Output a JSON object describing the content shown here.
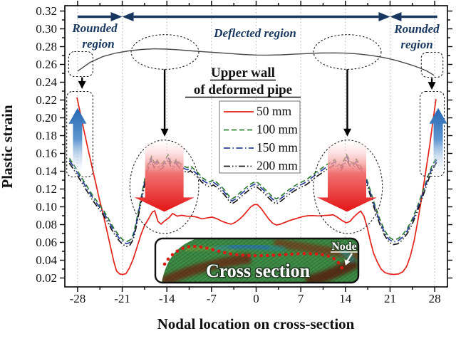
{
  "figure": {
    "x_axis": {
      "title": "Nodal location on cross-section",
      "tick_labels": [
        "-28",
        "-21",
        "-14",
        "-7",
        "0",
        "7",
        "14",
        "21",
        "28"
      ],
      "major_ticks": [
        -28,
        -21,
        -14,
        -7,
        0,
        7,
        14,
        21,
        28
      ],
      "minor_step": 3.5
    },
    "y_axis": {
      "title": "Plastic strain",
      "tick_labels": [
        "0.02",
        "0.04",
        "0.06",
        "0.08",
        "0.10",
        "0.12",
        "0.14",
        "0.16",
        "0.18",
        "0.20",
        "0.22",
        "0.24",
        "0.26",
        "0.28",
        "0.30",
        "0.32"
      ],
      "major_step": 0.02,
      "minor_step": 0.01
    }
  },
  "legend": {
    "entries": [
      {
        "label": "50 mm",
        "color": "#e2231a",
        "style": "solid"
      },
      {
        "label": "100 mm",
        "color": "#2e7d35",
        "style": "dashed"
      },
      {
        "label": "150 mm",
        "color": "#2c3e9e",
        "style": "dashdot"
      },
      {
        "label": "200 mm",
        "color": "#1c1c1c",
        "style": "dashdotdot"
      }
    ]
  },
  "annotations_text": {
    "rounded_region_left": {
      "line1": "Rounded",
      "line2": "region"
    },
    "deflected_region": {
      "label": "Deflected region"
    },
    "rounded_region_right": {
      "line1": "Rounded",
      "line2": "region"
    },
    "upper_wall": {
      "line1": "Upper wall",
      "line2": "of deformed pipe"
    },
    "inset": {
      "caption": "Cross section",
      "node_label": "Node"
    }
  },
  "chart_data": {
    "type": "line",
    "title": "",
    "xlabel": "Nodal location on cross-section",
    "ylabel": "Plastic strain",
    "xlim": [
      -30,
      30
    ],
    "ylim": [
      0.01,
      0.326
    ],
    "grid": "vertical-dotted",
    "legend_position": "upper-middle-left",
    "colors": {
      "series_50mm": "#e2231a",
      "series_100mm": "#2e7d35",
      "series_150mm": "#2c3e9e",
      "series_200mm": "#1c1c1c",
      "wall_profile": "#4a4a4a",
      "navy_annotation": "#17375e",
      "blue_arrow": "#2f6db8",
      "red_arrow": "#e8150d"
    },
    "series": [
      {
        "name": "50 mm",
        "color": "#e2231a",
        "style": "solid",
        "points": [
          [
            -28.1,
            0.223
          ],
          [
            -27.6,
            0.206
          ],
          [
            -27.0,
            0.186
          ],
          [
            -26.4,
            0.166
          ],
          [
            -25.8,
            0.147
          ],
          [
            -25.2,
            0.128
          ],
          [
            -24.6,
            0.109
          ],
          [
            -24.0,
            0.092
          ],
          [
            -23.4,
            0.073
          ],
          [
            -22.8,
            0.054
          ],
          [
            -22.3,
            0.038
          ],
          [
            -21.9,
            0.028
          ],
          [
            -21.4,
            0.0245
          ],
          [
            -20.9,
            0.024
          ],
          [
            -20.4,
            0.025
          ],
          [
            -19.9,
            0.031
          ],
          [
            -19.3,
            0.041
          ],
          [
            -18.7,
            0.054
          ],
          [
            -18.1,
            0.068
          ],
          [
            -17.5,
            0.079
          ],
          [
            -16.9,
            0.086
          ],
          [
            -16.3,
            0.094
          ],
          [
            -15.9,
            0.0955
          ],
          [
            -15.4,
            0.0835
          ],
          [
            -14.9,
            0.0805
          ],
          [
            -14.3,
            0.0845
          ],
          [
            -13.7,
            0.0875
          ],
          [
            -13.1,
            0.0925
          ],
          [
            -12.4,
            0.0895
          ],
          [
            -11.7,
            0.0905
          ],
          [
            -10.9,
            0.0895
          ],
          [
            -10.1,
            0.0893
          ],
          [
            -9.3,
            0.0885
          ],
          [
            -8.5,
            0.0865
          ],
          [
            -7.7,
            0.0875
          ],
          [
            -6.9,
            0.0885
          ],
          [
            -6.1,
            0.0865
          ],
          [
            -5.3,
            0.0835
          ],
          [
            -4.5,
            0.0815
          ],
          [
            -3.9,
            0.0805
          ],
          [
            -3.3,
            0.0825
          ],
          [
            -2.7,
            0.0855
          ],
          [
            -2.1,
            0.0895
          ],
          [
            -1.5,
            0.0945
          ],
          [
            -0.9,
            0.0995
          ],
          [
            -0.3,
            0.1025
          ],
          [
            0.2,
            0.1025
          ],
          [
            0.8,
            0.098
          ],
          [
            1.4,
            0.092
          ],
          [
            2.0,
            0.086
          ],
          [
            2.6,
            0.0815
          ],
          [
            3.2,
            0.0795
          ],
          [
            3.8,
            0.0805
          ],
          [
            4.5,
            0.0825
          ],
          [
            5.2,
            0.0845
          ],
          [
            5.9,
            0.086
          ],
          [
            6.6,
            0.0875
          ],
          [
            7.3,
            0.089
          ],
          [
            8.1,
            0.09
          ],
          [
            8.9,
            0.0902
          ],
          [
            9.7,
            0.0898
          ],
          [
            10.5,
            0.0902
          ],
          [
            11.3,
            0.0905
          ],
          [
            12.1,
            0.091
          ],
          [
            12.8,
            0.088
          ],
          [
            13.5,
            0.0845
          ],
          [
            14.1,
            0.082
          ],
          [
            14.7,
            0.0835
          ],
          [
            15.3,
            0.0885
          ],
          [
            15.9,
            0.0925
          ],
          [
            16.4,
            0.0952
          ],
          [
            16.9,
            0.0895
          ],
          [
            17.4,
            0.0775
          ],
          [
            17.9,
            0.062
          ],
          [
            18.4,
            0.048
          ],
          [
            19.0,
            0.038
          ],
          [
            19.6,
            0.03
          ],
          [
            20.2,
            0.026
          ],
          [
            20.9,
            0.0245
          ],
          [
            21.6,
            0.024
          ],
          [
            22.3,
            0.0245
          ],
          [
            23.0,
            0.027
          ],
          [
            23.6,
            0.033
          ],
          [
            24.2,
            0.045
          ],
          [
            24.8,
            0.063
          ],
          [
            25.4,
            0.086
          ],
          [
            26.0,
            0.112
          ],
          [
            26.6,
            0.14
          ],
          [
            27.2,
            0.168
          ],
          [
            27.7,
            0.195
          ],
          [
            28.2,
            0.221
          ]
        ]
      },
      {
        "name": "100 mm",
        "color": "#2e7d35",
        "style": "dashed",
        "base": "deflected_base",
        "offset": 0.0025
      },
      {
        "name": "150 mm",
        "color": "#2c3e9e",
        "style": "dashdot",
        "base": "deflected_base",
        "offset": 0.0
      },
      {
        "name": "200 mm",
        "color": "#1c1c1c",
        "style": "dashdotdot",
        "base": "deflected_base",
        "offset": -0.003
      }
    ],
    "deflected_base": [
      [
        -29.3,
        0.152
      ],
      [
        -28.7,
        0.146
      ],
      [
        -28.1,
        0.139
      ],
      [
        -27.5,
        0.132
      ],
      [
        -26.9,
        0.125
      ],
      [
        -26.3,
        0.118
      ],
      [
        -25.7,
        0.111
      ],
      [
        -25.1,
        0.105
      ],
      [
        -24.5,
        0.099
      ],
      [
        -23.9,
        0.093
      ],
      [
        -23.3,
        0.086
      ],
      [
        -22.7,
        0.078
      ],
      [
        -22.1,
        0.071
      ],
      [
        -21.5,
        0.065
      ],
      [
        -20.9,
        0.0605
      ],
      [
        -20.3,
        0.0585
      ],
      [
        -19.8,
        0.06
      ],
      [
        -19.3,
        0.066
      ],
      [
        -18.9,
        0.077
      ],
      [
        -18.4,
        0.095
      ],
      [
        -17.9,
        0.113
      ],
      [
        -17.4,
        0.131
      ],
      [
        -16.9,
        0.146
      ],
      [
        -16.4,
        0.154
      ],
      [
        -16.0,
        0.147
      ],
      [
        -15.6,
        0.151
      ],
      [
        -15.1,
        0.1445
      ],
      [
        -14.6,
        0.147
      ],
      [
        -14.1,
        0.1525
      ],
      [
        -13.8,
        0.156
      ],
      [
        -13.4,
        0.1485
      ],
      [
        -13.0,
        0.1455
      ],
      [
        -12.5,
        0.151
      ],
      [
        -12.0,
        0.1465
      ],
      [
        -11.4,
        0.1435
      ],
      [
        -10.8,
        0.1415
      ],
      [
        -10.3,
        0.1435
      ],
      [
        -9.7,
        0.1395
      ],
      [
        -9.1,
        0.1355
      ],
      [
        -8.5,
        0.1305
      ],
      [
        -7.9,
        0.1275
      ],
      [
        -7.3,
        0.1255
      ],
      [
        -6.7,
        0.1275
      ],
      [
        -6.1,
        0.1245
      ],
      [
        -5.5,
        0.1205
      ],
      [
        -4.9,
        0.116
      ],
      [
        -4.3,
        0.11
      ],
      [
        -3.8,
        0.1065
      ],
      [
        -3.3,
        0.1085
      ],
      [
        -2.8,
        0.1115
      ],
      [
        -2.2,
        0.1155
      ],
      [
        -1.6,
        0.119
      ],
      [
        -1.0,
        0.1225
      ],
      [
        -0.5,
        0.1245
      ],
      [
        0.0,
        0.126
      ],
      [
        0.6,
        0.1225
      ],
      [
        1.2,
        0.1185
      ],
      [
        1.9,
        0.1135
      ],
      [
        2.6,
        0.1085
      ],
      [
        3.2,
        0.1065
      ],
      [
        3.8,
        0.109
      ],
      [
        4.5,
        0.113
      ],
      [
        5.2,
        0.117
      ],
      [
        5.9,
        0.1205
      ],
      [
        6.6,
        0.1235
      ],
      [
        7.2,
        0.1255
      ],
      [
        7.9,
        0.128
      ],
      [
        8.6,
        0.132
      ],
      [
        9.4,
        0.1365
      ],
      [
        10.2,
        0.1405
      ],
      [
        11.0,
        0.1445
      ],
      [
        11.7,
        0.1475
      ],
      [
        12.3,
        0.1505
      ],
      [
        12.8,
        0.146
      ],
      [
        13.3,
        0.1435
      ],
      [
        13.8,
        0.1505
      ],
      [
        14.2,
        0.156
      ],
      [
        14.7,
        0.149
      ],
      [
        15.2,
        0.146
      ],
      [
        15.7,
        0.151
      ],
      [
        16.2,
        0.1455
      ],
      [
        16.8,
        0.1375
      ],
      [
        17.4,
        0.1275
      ],
      [
        18.0,
        0.1135
      ],
      [
        18.7,
        0.0975
      ],
      [
        19.4,
        0.0835
      ],
      [
        20.1,
        0.0715
      ],
      [
        20.8,
        0.0635
      ],
      [
        21.5,
        0.0605
      ],
      [
        22.2,
        0.0615
      ],
      [
        22.9,
        0.0655
      ],
      [
        23.7,
        0.073
      ],
      [
        24.5,
        0.084
      ],
      [
        25.3,
        0.098
      ],
      [
        26.1,
        0.114
      ],
      [
        26.9,
        0.131
      ],
      [
        27.6,
        0.144
      ],
      [
        28.3,
        0.153
      ]
    ],
    "wall_profile": [
      [
        -28.0,
        0.2525
      ],
      [
        -26,
        0.2625
      ],
      [
        -24,
        0.269
      ],
      [
        -22,
        0.2728
      ],
      [
        -20,
        0.2752
      ],
      [
        -18,
        0.2768
      ],
      [
        -16,
        0.2775
      ],
      [
        -14,
        0.2772
      ],
      [
        -12,
        0.2763
      ],
      [
        -10,
        0.2752
      ],
      [
        -8,
        0.2742
      ],
      [
        -6,
        0.2732
      ],
      [
        -4,
        0.2722
      ],
      [
        -2,
        0.2712
      ],
      [
        0,
        0.2706
      ],
      [
        2,
        0.2705
      ],
      [
        4,
        0.2708
      ],
      [
        6,
        0.2715
      ],
      [
        8,
        0.2722
      ],
      [
        10,
        0.2728
      ],
      [
        12,
        0.273
      ],
      [
        14,
        0.2727
      ],
      [
        16,
        0.2718
      ],
      [
        18,
        0.2702
      ],
      [
        20,
        0.2678
      ],
      [
        22,
        0.2645
      ],
      [
        24,
        0.2602
      ],
      [
        25.5,
        0.2565
      ],
      [
        26.8,
        0.2525
      ],
      [
        27.9,
        0.2478
      ]
    ],
    "annotations": {
      "range_bar": {
        "y": 0.3136,
        "segments": [
          {
            "x1": -28.0,
            "x2": -21.0,
            "heads": [
              "end"
            ]
          },
          {
            "x1": -21.0,
            "x2": 21.0,
            "heads": [
              "start",
              "end"
            ]
          },
          {
            "x1": 21.0,
            "x2": 28.4,
            "heads": [
              "start"
            ]
          }
        ]
      },
      "dashed_boxes": [
        [
          -29.4,
          0.2464,
          -25.6,
          0.2744
        ],
        [
          -29.7,
          0.1336,
          -25.6,
          0.2296
        ],
        [
          25.9,
          0.2456,
          29.3,
          0.2736
        ],
        [
          25.7,
          0.1344,
          29.5,
          0.2296
        ]
      ],
      "dashed_ellipses": [
        [
          -14.3,
          0.274,
          5.3,
          0.0195
        ],
        [
          14.3,
          0.274,
          5.3,
          0.0195
        ],
        [
          -14.4,
          0.1225,
          5.4,
          0.0525
        ],
        [
          14.4,
          0.1225,
          5.4,
          0.0525
        ]
      ],
      "black_arrows": [
        [
          -27.3,
          0.2455,
          0.2325
        ],
        [
          27.55,
          0.2445,
          0.2315
        ],
        [
          -14.35,
          0.2545,
          0.179
        ],
        [
          14.3,
          0.2545,
          0.179
        ]
      ],
      "blue_up_arrows": [
        {
          "x": -28.0,
          "y1": 0.133,
          "y2": 0.211
        },
        {
          "x": 28.55,
          "y1": 0.133,
          "y2": 0.211
        }
      ],
      "red_down_arrows": [
        {
          "x": -14.4,
          "y1": 0.172,
          "y2": 0.0945
        },
        {
          "x": 14.25,
          "y1": 0.172,
          "y2": 0.0945
        }
      ]
    }
  }
}
